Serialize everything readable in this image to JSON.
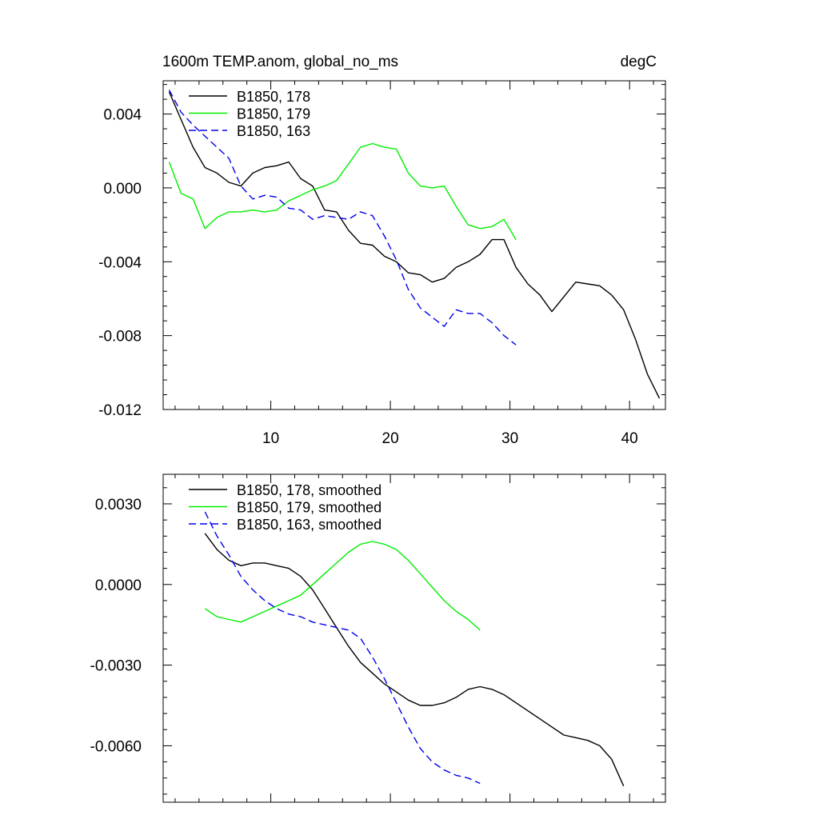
{
  "chart_data": [
    {
      "type": "line",
      "title_left": "1600m TEMP.anom, global_no_ms",
      "title_right": "degC",
      "xlim": [
        1,
        43
      ],
      "ylim": [
        -0.012,
        0.0058
      ],
      "xticks": [
        10,
        20,
        30,
        40
      ],
      "xtick_labels": [
        "10",
        "20",
        "30",
        "40"
      ],
      "yticks": [
        0.004,
        0.0,
        -0.004,
        -0.008,
        -0.012
      ],
      "ytick_labels": [
        "0.004",
        "0.000",
        "-0.004",
        "-0.008",
        "-0.012"
      ],
      "legend": "top-left",
      "series": [
        {
          "name": "B1850, 178",
          "color": "#000000",
          "dash": false,
          "x": [
            1.5,
            2.5,
            3.5,
            4.5,
            5.5,
            6.5,
            7.5,
            8.5,
            9.5,
            10.5,
            11.5,
            12.5,
            13.5,
            14.5,
            15.5,
            16.5,
            17.5,
            18.5,
            19.5,
            20.5,
            21.5,
            22.5,
            23.5,
            24.5,
            25.5,
            26.5,
            27.5,
            28.5,
            29.5,
            30.5,
            31.5,
            32.5,
            33.5,
            34.5,
            35.5,
            36.5,
            37.5,
            38.5,
            39.5,
            40.5,
            41.5,
            42.5
          ],
          "y": [
            0.0052,
            0.0037,
            0.0022,
            0.0011,
            0.0008,
            0.0003,
            0.0001,
            0.0008,
            0.0011,
            0.0012,
            0.0014,
            0.0005,
            0.0001,
            -0.0012,
            -0.0013,
            -0.0023,
            -0.003,
            -0.0031,
            -0.0037,
            -0.004,
            -0.0046,
            -0.0047,
            -0.0051,
            -0.0049,
            -0.0043,
            -0.004,
            -0.0036,
            -0.0028,
            -0.0028,
            -0.0043,
            -0.0052,
            -0.0058,
            -0.0067,
            -0.0059,
            -0.0051,
            -0.0052,
            -0.0053,
            -0.0058,
            -0.0066,
            -0.0082,
            -0.0101,
            -0.0114
          ]
        },
        {
          "name": "B1850, 179",
          "color": "#00ee00",
          "dash": false,
          "x": [
            1.5,
            2.5,
            3.5,
            4.5,
            5.5,
            6.5,
            7.5,
            8.5,
            9.5,
            10.5,
            11.5,
            12.5,
            13.5,
            14.5,
            15.5,
            16.5,
            17.5,
            18.5,
            19.5,
            20.5,
            21.5,
            22.5,
            23.5,
            24.5,
            25.5,
            26.5,
            27.5,
            28.5,
            29.5,
            30.5
          ],
          "y": [
            0.0014,
            -0.0003,
            -0.0006,
            -0.0022,
            -0.0016,
            -0.0013,
            -0.0013,
            -0.0012,
            -0.0013,
            -0.0012,
            -0.0007,
            -0.0004,
            -0.0001,
            0.0001,
            0.0004,
            0.0013,
            0.0022,
            0.0024,
            0.0022,
            0.0021,
            0.0008,
            0.0001,
            0.0,
            0.0001,
            -0.001,
            -0.002,
            -0.0022,
            -0.0021,
            -0.0017,
            -0.0028
          ]
        },
        {
          "name": "B1850, 163",
          "color": "#0000ee",
          "dash": true,
          "x": [
            1.5,
            2.5,
            3.5,
            4.5,
            5.5,
            6.5,
            7.5,
            8.5,
            9.5,
            10.5,
            11.5,
            12.5,
            13.5,
            14.5,
            15.5,
            16.5,
            17.5,
            18.5,
            19.5,
            20.5,
            21.5,
            22.5,
            23.5,
            24.5,
            25.5,
            26.5,
            27.5,
            28.5,
            29.5,
            30.5
          ],
          "y": [
            0.0053,
            0.0041,
            0.0034,
            0.0028,
            0.0022,
            0.0016,
            0.0001,
            -0.0006,
            -0.0004,
            -0.0005,
            -0.0011,
            -0.0012,
            -0.0017,
            -0.0015,
            -0.0016,
            -0.0017,
            -0.0013,
            -0.0015,
            -0.0026,
            -0.0039,
            -0.0055,
            -0.0065,
            -0.007,
            -0.0075,
            -0.0066,
            -0.0068,
            -0.0068,
            -0.0073,
            -0.008,
            -0.0085
          ]
        }
      ]
    },
    {
      "type": "line",
      "xlim": [
        1,
        43
      ],
      "ylim": [
        -0.0081,
        0.0041
      ],
      "xticks": [
        10,
        20,
        30,
        40
      ],
      "yticks": [
        0.003,
        0.0,
        -0.003,
        -0.006
      ],
      "ytick_labels": [
        "0.0030",
        "0.0000",
        "-0.0030",
        "-0.0060"
      ],
      "legend": "top-left",
      "series": [
        {
          "name": "B1850, 178, smoothed",
          "color": "#000000",
          "dash": false,
          "x": [
            4.5,
            5.5,
            6.5,
            7.5,
            8.5,
            9.5,
            10.5,
            11.5,
            12.5,
            13.5,
            14.5,
            15.5,
            16.5,
            17.5,
            18.5,
            19.5,
            20.5,
            21.5,
            22.5,
            23.5,
            24.5,
            25.5,
            26.5,
            27.5,
            28.5,
            29.5,
            30.5,
            31.5,
            32.5,
            33.5,
            34.5,
            35.5,
            36.5,
            37.5,
            38.5,
            39.5
          ],
          "y": [
            0.0019,
            0.0013,
            0.0009,
            0.0007,
            0.0008,
            0.0008,
            0.0007,
            0.0006,
            0.0003,
            -0.0002,
            -0.0009,
            -0.0016,
            -0.0023,
            -0.0029,
            -0.0033,
            -0.0037,
            -0.004,
            -0.0043,
            -0.0045,
            -0.0045,
            -0.0044,
            -0.0042,
            -0.0039,
            -0.0038,
            -0.0039,
            -0.0041,
            -0.0044,
            -0.0047,
            -0.005,
            -0.0053,
            -0.0056,
            -0.0057,
            -0.0058,
            -0.006,
            -0.0065,
            -0.0075
          ]
        },
        {
          "name": "B1850, 179, smoothed",
          "color": "#00ee00",
          "dash": false,
          "x": [
            4.5,
            5.5,
            6.5,
            7.5,
            8.5,
            9.5,
            10.5,
            11.5,
            12.5,
            13.5,
            14.5,
            15.5,
            16.5,
            17.5,
            18.5,
            19.5,
            20.5,
            21.5,
            22.5,
            23.5,
            24.5,
            25.5,
            26.5,
            27.5
          ],
          "y": [
            -0.0009,
            -0.0012,
            -0.0013,
            -0.0014,
            -0.0012,
            -0.001,
            -0.0008,
            -0.0006,
            -0.0004,
            0.0,
            0.0004,
            0.0008,
            0.0012,
            0.0015,
            0.0016,
            0.0015,
            0.0013,
            0.0009,
            0.0004,
            -0.0001,
            -0.0006,
            -0.001,
            -0.0013,
            -0.0017
          ]
        },
        {
          "name": "B1850, 163, smoothed",
          "color": "#0000ee",
          "dash": true,
          "x": [
            4.5,
            5.5,
            6.5,
            7.5,
            8.5,
            9.5,
            10.5,
            11.5,
            12.5,
            13.5,
            14.5,
            15.5,
            16.5,
            17.5,
            18.5,
            19.5,
            20.5,
            21.5,
            22.5,
            23.5,
            24.5,
            25.5,
            26.5,
            27.5
          ],
          "y": [
            0.0027,
            0.0018,
            0.0011,
            0.0003,
            -0.0002,
            -0.0006,
            -0.0009,
            -0.0011,
            -0.0012,
            -0.0014,
            -0.0015,
            -0.0016,
            -0.0017,
            -0.002,
            -0.0027,
            -0.0035,
            -0.0044,
            -0.0053,
            -0.0061,
            -0.0066,
            -0.0069,
            -0.0071,
            -0.0072,
            -0.0074
          ]
        }
      ]
    }
  ]
}
